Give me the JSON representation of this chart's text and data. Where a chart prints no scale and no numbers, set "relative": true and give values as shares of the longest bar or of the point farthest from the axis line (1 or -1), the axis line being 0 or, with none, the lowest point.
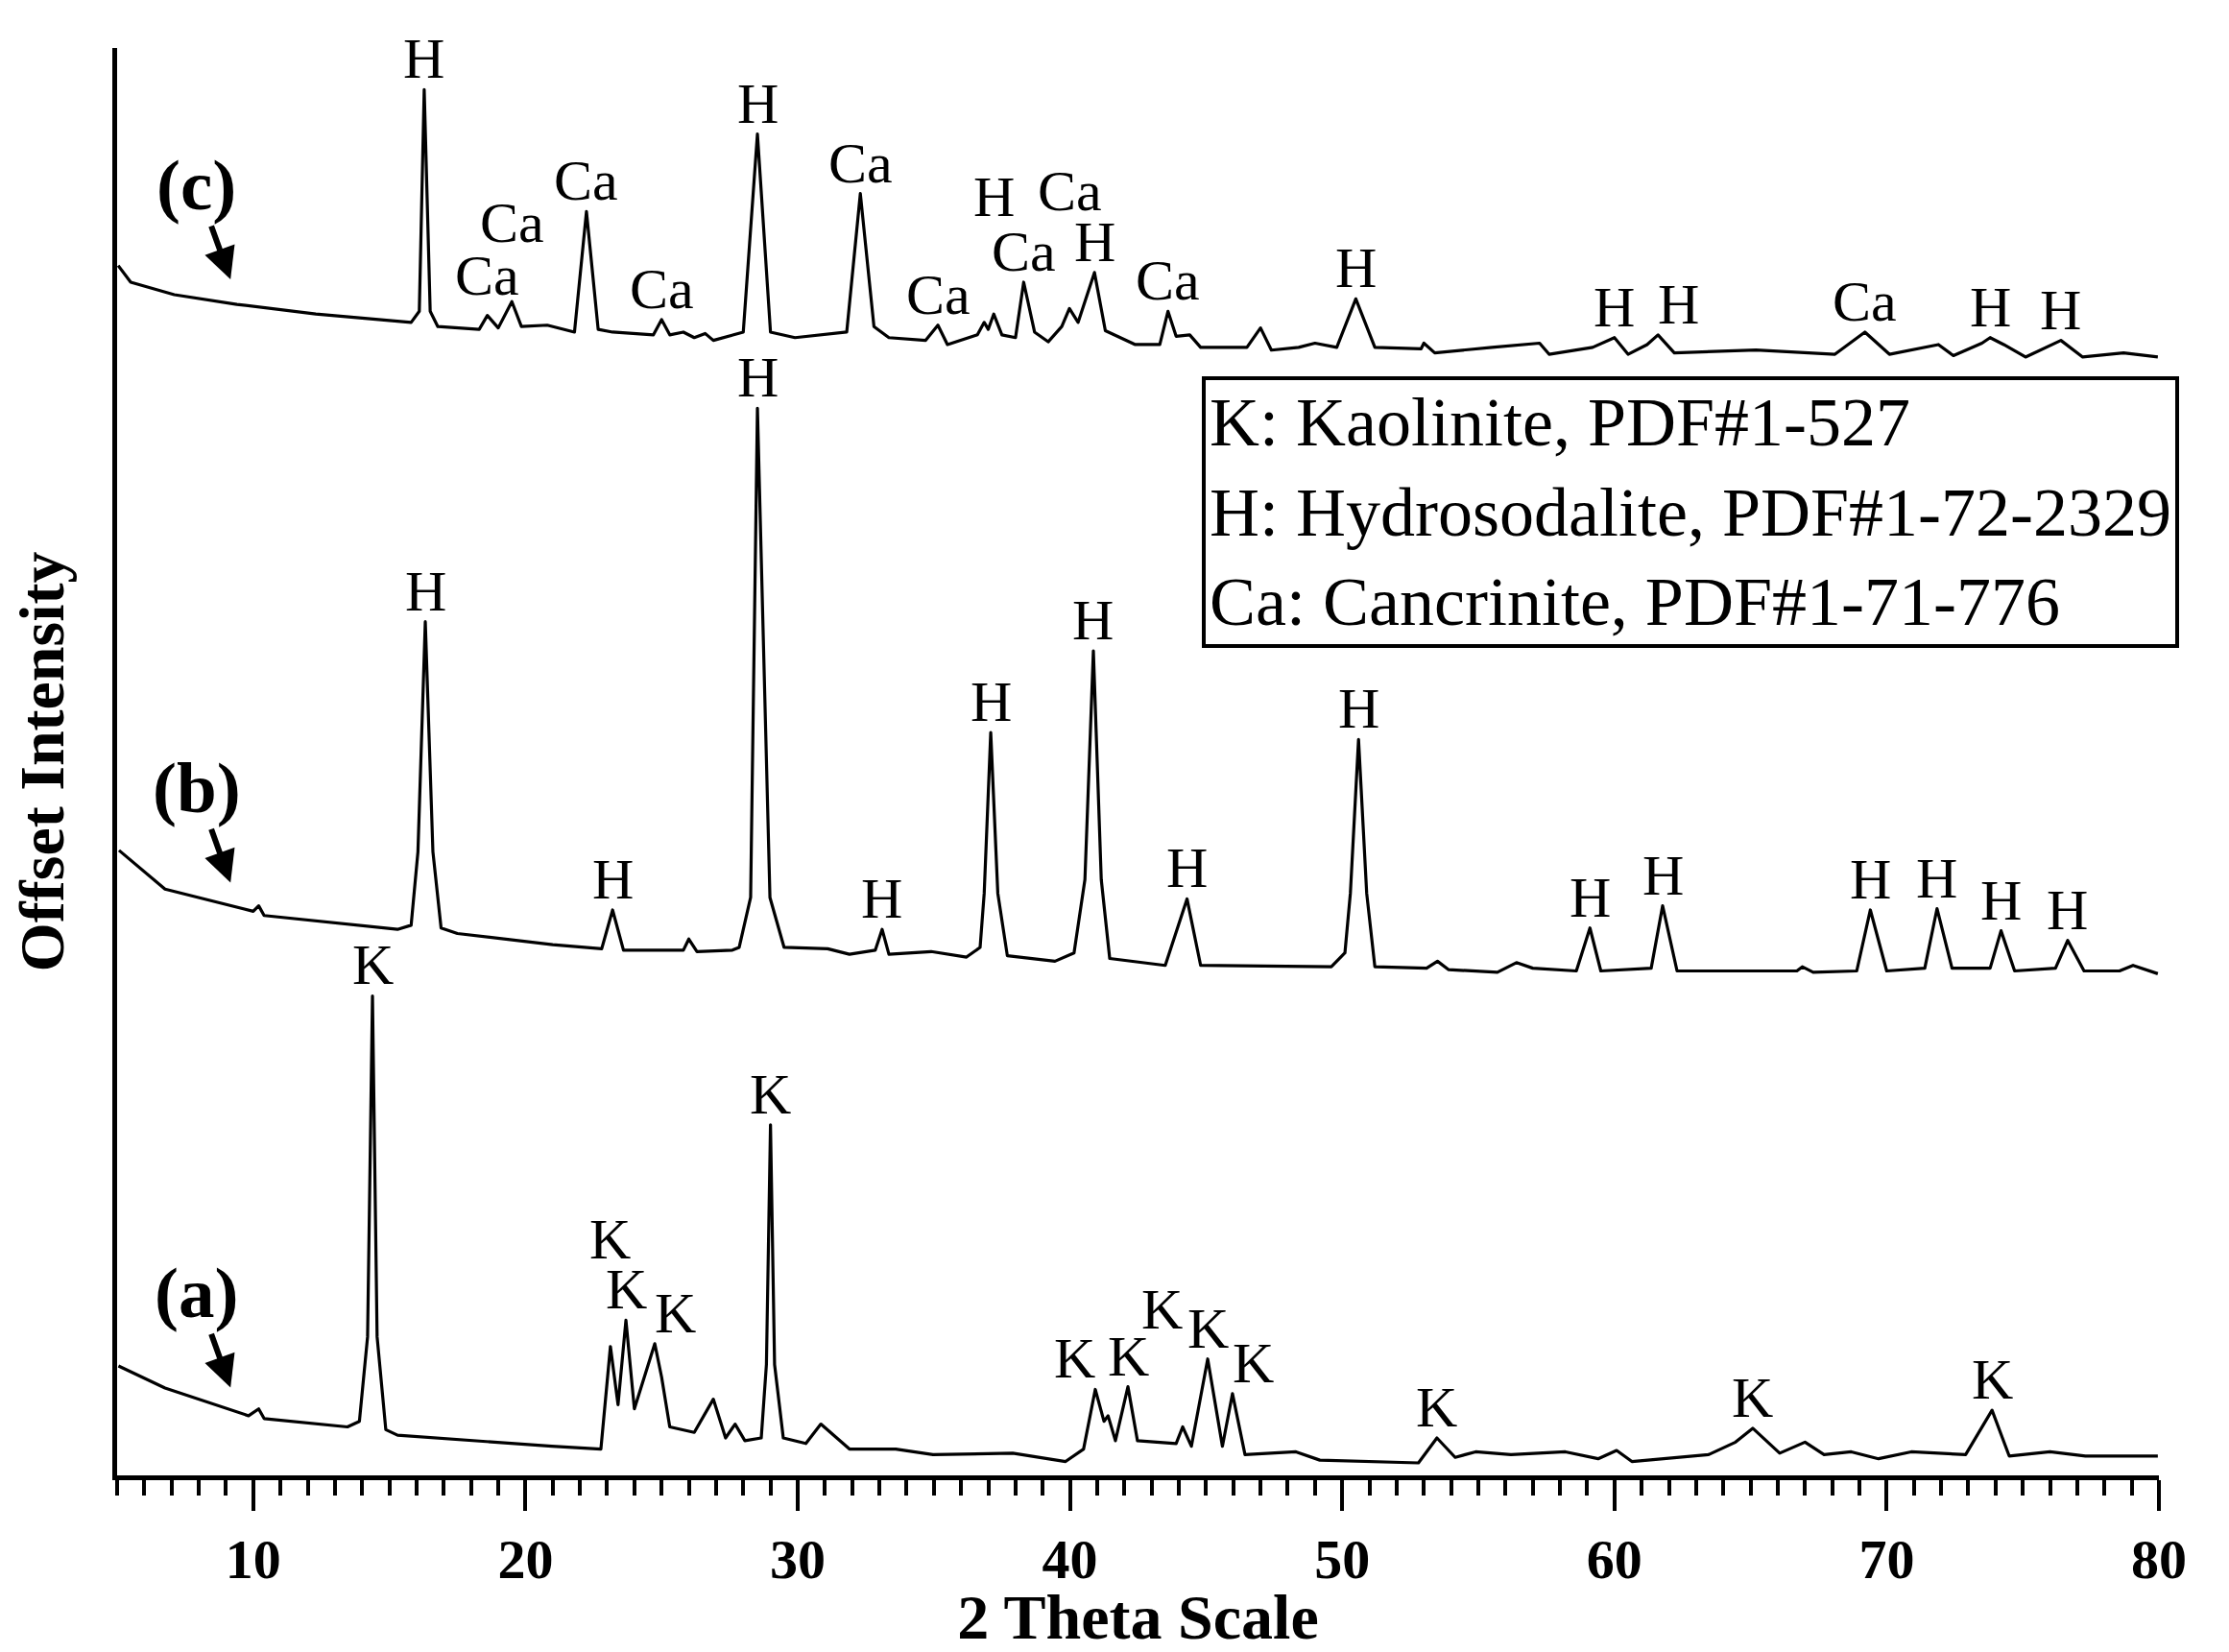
{
  "chart_data": {
    "type": "line",
    "relative": true,
    "xlabel": "2 Theta Scale",
    "ylabel": "Offset Intensity",
    "xlim": [
      5,
      80
    ],
    "xticks": [
      {
        "value": 5,
        "label": null
      },
      {
        "value": 6,
        "label": null
      },
      {
        "value": 7,
        "label": null
      },
      {
        "value": 8,
        "label": null
      },
      {
        "value": 9,
        "label": null
      },
      10,
      {
        "value": 11,
        "label": null
      },
      {
        "value": 12,
        "label": null
      },
      {
        "value": 13,
        "label": null
      },
      {
        "value": 14,
        "label": null
      },
      {
        "value": 15,
        "label": null
      },
      {
        "value": 16,
        "label": null
      },
      {
        "value": 17,
        "label": null
      },
      {
        "value": 18,
        "label": null
      },
      {
        "value": 19,
        "label": null
      },
      20,
      {
        "value": 21,
        "label": null
      },
      {
        "value": 22,
        "label": null
      },
      {
        "value": 23,
        "label": null
      },
      {
        "value": 24,
        "label": null
      },
      {
        "value": 25,
        "label": null
      },
      {
        "value": 26,
        "label": null
      },
      {
        "value": 27,
        "label": null
      },
      {
        "value": 28,
        "label": null
      },
      {
        "value": 29,
        "label": null
      },
      30,
      {
        "value": 31,
        "label": null
      },
      {
        "value": 32,
        "label": null
      },
      {
        "value": 33,
        "label": null
      },
      {
        "value": 34,
        "label": null
      },
      {
        "value": 35,
        "label": null
      },
      {
        "value": 36,
        "label": null
      },
      {
        "value": 37,
        "label": null
      },
      {
        "value": 38,
        "label": null
      },
      {
        "value": 39,
        "label": null
      },
      40,
      {
        "value": 41,
        "label": null
      },
      {
        "value": 42,
        "label": null
      },
      {
        "value": 43,
        "label": null
      },
      {
        "value": 44,
        "label": null
      },
      {
        "value": 45,
        "label": null
      },
      {
        "value": 46,
        "label": null
      },
      {
        "value": 47,
        "label": null
      },
      {
        "value": 48,
        "label": null
      },
      {
        "value": 49,
        "label": null
      },
      50,
      {
        "value": 51,
        "label": null
      },
      {
        "value": 52,
        "label": null
      },
      {
        "value": 53,
        "label": null
      },
      {
        "value": 54,
        "label": null
      },
      {
        "value": 55,
        "label": null
      },
      {
        "value": 56,
        "label": null
      },
      {
        "value": 57,
        "label": null
      },
      {
        "value": 58,
        "label": null
      },
      {
        "value": 59,
        "label": null
      },
      60,
      {
        "value": 61,
        "label": null
      },
      {
        "value": 62,
        "label": null
      },
      {
        "value": 63,
        "label": null
      },
      {
        "value": 64,
        "label": null
      },
      {
        "value": 65,
        "label": null
      },
      {
        "value": 66,
        "label": null
      },
      {
        "value": 67,
        "label": null
      },
      {
        "value": 68,
        "label": null
      },
      {
        "value": 69,
        "label": null
      },
      70,
      {
        "value": 71,
        "label": null
      },
      {
        "value": 72,
        "label": null
      },
      {
        "value": 73,
        "label": null
      },
      {
        "value": 74,
        "label": null
      },
      {
        "value": 75,
        "label": null
      },
      {
        "value": 76,
        "label": null
      },
      {
        "value": 77,
        "label": null
      },
      {
        "value": 78,
        "label": null
      },
      {
        "value": 79,
        "label": null
      },
      80
    ],
    "series": [
      {
        "name": "(a)",
        "color": "#000000",
        "x": [
          5.05,
          6.76,
          9.83,
          10.2,
          10.4,
          13.46,
          13.9,
          14.2,
          14.38,
          14.55,
          14.87,
          15.3,
          20.97,
          22.77,
          23.12,
          23.4,
          23.69,
          24.0,
          24.75,
          25.0,
          25.3,
          26.2,
          26.9,
          27.35,
          27.7,
          28.06,
          28.66,
          28.85,
          29.0,
          29.15,
          29.47,
          30.3,
          30.85,
          31.9,
          33.6,
          34.97,
          37.9,
          39.84,
          40.5,
          40.93,
          41.25,
          41.4,
          41.67,
          42.13,
          42.48,
          43.9,
          44.14,
          44.46,
          45.06,
          45.6,
          45.97,
          46.43,
          48.3,
          49.18,
          52.8,
          53.48,
          54.15,
          54.9,
          56.2,
          58.2,
          59.4,
          60.08,
          60.64,
          63.46,
          64.45,
          65.08,
          66.07,
          67.0,
          67.7,
          68.7,
          69.7,
          70.9,
          72.9,
          73.87,
          74.5,
          76.0,
          77.3,
          79.96
        ],
        "values": [
          0.079,
          0.063,
          0.043,
          0.048,
          0.041,
          0.035,
          0.039,
          0.1,
          0.346,
          0.1,
          0.033,
          0.029,
          0.021,
          0.019,
          0.093,
          0.051,
          0.112,
          0.048,
          0.095,
          0.071,
          0.035,
          0.031,
          0.055,
          0.027,
          0.037,
          0.025,
          0.027,
          0.08,
          0.253,
          0.08,
          0.027,
          0.023,
          0.037,
          0.019,
          0.019,
          0.015,
          0.016,
          0.01,
          0.019,
          0.062,
          0.039,
          0.043,
          0.025,
          0.064,
          0.025,
          0.023,
          0.035,
          0.021,
          0.084,
          0.021,
          0.059,
          0.015,
          0.017,
          0.011,
          0.009,
          0.027,
          0.013,
          0.017,
          0.015,
          0.017,
          0.012,
          0.018,
          0.01,
          0.015,
          0.024,
          0.034,
          0.016,
          0.024,
          0.015,
          0.017,
          0.012,
          0.017,
          0.015,
          0.047,
          0.014,
          0.017,
          0.014,
          0.014
        ]
      },
      {
        "name": "(b)",
        "color": "#000000",
        "x": [
          5.07,
          6.76,
          10.0,
          10.2,
          10.4,
          15.3,
          15.8,
          16.05,
          16.32,
          16.6,
          16.9,
          17.5,
          21.0,
          22.8,
          23.2,
          23.6,
          25.8,
          26.0,
          26.3,
          27.6,
          27.85,
          28.27,
          28.52,
          28.98,
          29.5,
          31.1,
          31.9,
          32.85,
          33.1,
          33.35,
          34.9,
          36.2,
          36.7,
          36.85,
          37.09,
          37.35,
          37.7,
          39.45,
          40.15,
          40.55,
          40.86,
          41.15,
          41.46,
          43.5,
          44.3,
          44.8,
          49.6,
          50.1,
          50.3,
          50.6,
          50.9,
          51.2,
          53.1,
          53.5,
          53.9,
          55.7,
          56.4,
          57.0,
          58.6,
          59.1,
          59.5,
          61.35,
          61.77,
          62.3,
          66.7,
          66.9,
          67.3,
          68.9,
          69.4,
          70.0,
          71.4,
          71.85,
          72.4,
          73.8,
          74.2,
          74.7,
          76.2,
          76.65,
          77.25,
          78.55,
          79.05,
          79.96
        ],
        "values": [
          0.451,
          0.423,
          0.407,
          0.411,
          0.404,
          0.394,
          0.397,
          0.45,
          0.616,
          0.45,
          0.395,
          0.391,
          0.383,
          0.38,
          0.408,
          0.379,
          0.379,
          0.387,
          0.378,
          0.379,
          0.381,
          0.417,
          0.77,
          0.417,
          0.381,
          0.38,
          0.376,
          0.379,
          0.394,
          0.376,
          0.378,
          0.374,
          0.381,
          0.42,
          0.536,
          0.42,
          0.375,
          0.371,
          0.377,
          0.43,
          0.595,
          0.43,
          0.373,
          0.368,
          0.416,
          0.368,
          0.367,
          0.377,
          0.42,
          0.531,
          0.42,
          0.367,
          0.366,
          0.371,
          0.365,
          0.363,
          0.37,
          0.366,
          0.364,
          0.395,
          0.364,
          0.366,
          0.411,
          0.364,
          0.364,
          0.367,
          0.363,
          0.364,
          0.408,
          0.364,
          0.366,
          0.409,
          0.366,
          0.366,
          0.393,
          0.364,
          0.366,
          0.386,
          0.364,
          0.364,
          0.368,
          0.362
        ]
      },
      {
        "name": "(c)",
        "color": "#000000",
        "x": [
          5.04,
          5.5,
          7.1,
          9.4,
          12.3,
          15.8,
          16.1,
          16.28,
          16.5,
          16.78,
          18.3,
          18.6,
          19.0,
          19.5,
          19.85,
          20.8,
          21.8,
          22.24,
          22.67,
          23.2,
          24.7,
          25.0,
          25.3,
          25.8,
          26.2,
          26.6,
          26.9,
          28.0,
          28.52,
          29.0,
          29.9,
          31.8,
          32.3,
          32.8,
          33.35,
          34.7,
          35.15,
          35.5,
          36.6,
          36.85,
          37.0,
          37.2,
          37.5,
          38.0,
          38.3,
          38.7,
          39.2,
          39.7,
          39.98,
          40.3,
          40.9,
          41.3,
          42.4,
          43.3,
          43.6,
          43.9,
          44.4,
          44.8,
          46.5,
          47.0,
          47.4,
          48.4,
          49.0,
          49.8,
          50.5,
          51.2,
          52.9,
          53.0,
          53.4,
          55.5,
          57.25,
          57.6,
          59.2,
          60.0,
          60.5,
          61.2,
          61.6,
          62.2,
          65.2,
          68.1,
          69.2,
          70.1,
          71.9,
          72.45,
          73.5,
          73.8,
          74.3,
          75.1,
          76.4,
          77.2,
          78.7,
          79.96
        ],
        "values": [
          0.873,
          0.861,
          0.852,
          0.845,
          0.838,
          0.832,
          0.84,
          1,
          0.84,
          0.829,
          0.827,
          0.837,
          0.828,
          0.847,
          0.829,
          0.83,
          0.825,
          0.912,
          0.827,
          0.825,
          0.823,
          0.834,
          0.823,
          0.825,
          0.821,
          0.824,
          0.819,
          0.825,
          0.968,
          0.825,
          0.821,
          0.825,
          0.925,
          0.829,
          0.821,
          0.819,
          0.83,
          0.816,
          0.823,
          0.832,
          0.827,
          0.838,
          0.823,
          0.821,
          0.861,
          0.825,
          0.818,
          0.829,
          0.842,
          0.832,
          0.868,
          0.826,
          0.816,
          0.816,
          0.84,
          0.822,
          0.823,
          0.814,
          0.814,
          0.828,
          0.812,
          0.814,
          0.817,
          0.814,
          0.849,
          0.814,
          0.813,
          0.817,
          0.81,
          0.814,
          0.817,
          0.809,
          0.814,
          0.821,
          0.809,
          0.816,
          0.823,
          0.81,
          0.812,
          0.809,
          0.825,
          0.809,
          0.816,
          0.808,
          0.817,
          0.821,
          0.816,
          0.807,
          0.819,
          0.807,
          0.81,
          0.807
        ]
      }
    ],
    "annotations": [
      {
        "text": "H",
        "x": 16.28,
        "y": 1
      },
      {
        "text": "Ca",
        "x": 22.24,
        "y": 0.912
      },
      {
        "text": "H",
        "x": 28.52,
        "y": 0.968
      },
      {
        "text": "Ca",
        "x": 32.3,
        "y": 0.925
      },
      {
        "text": "Ca",
        "x": 18.6,
        "y": 0.837
      },
      {
        "text": "Ca",
        "x": 19.5,
        "y": 0.847
      },
      {
        "text": "Ca",
        "x": 25.0,
        "y": 0.834
      },
      {
        "text": "Ca",
        "x": 35.15,
        "y": 0.83
      },
      {
        "text": "H",
        "x": 40.9,
        "y": 0.868
      },
      {
        "text": "Ca",
        "x": 38.3,
        "y": 0.861
      },
      {
        "text": "H",
        "x": 37.2,
        "y": 0.838
      },
      {
        "text": "Ca",
        "x": 39.98,
        "y": 0.842
      },
      {
        "text": "Ca",
        "x": 43.6,
        "y": 0.84
      },
      {
        "text": "H",
        "x": 50.5,
        "y": 0.849
      },
      {
        "text": "H",
        "x": 60.0,
        "y": 0.821
      },
      {
        "text": "H",
        "x": 61.6,
        "y": 0.823
      },
      {
        "text": "Ca",
        "x": 69.2,
        "y": 0.825
      },
      {
        "text": "H",
        "x": 73.8,
        "y": 0.821
      },
      {
        "text": "H",
        "x": 76.4,
        "y": 0.819
      },
      {
        "text": "H",
        "x": 28.52,
        "y": 0.77
      },
      {
        "text": "H",
        "x": 16.32,
        "y": 0.616
      },
      {
        "text": "H",
        "x": 40.86,
        "y": 0.595
      },
      {
        "text": "H",
        "x": 37.09,
        "y": 0.536
      },
      {
        "text": "H",
        "x": 50.6,
        "y": 0.531
      },
      {
        "text": "H",
        "x": 23.2,
        "y": 0.408
      },
      {
        "text": "H",
        "x": 33.1,
        "y": 0.394
      },
      {
        "text": "H",
        "x": 44.3,
        "y": 0.416
      },
      {
        "text": "H",
        "x": 59.1,
        "y": 0.395
      },
      {
        "text": "H",
        "x": 61.77,
        "y": 0.411
      },
      {
        "text": "H",
        "x": 69.4,
        "y": 0.408
      },
      {
        "text": "H",
        "x": 71.85,
        "y": 0.409
      },
      {
        "text": "H",
        "x": 74.2,
        "y": 0.393
      },
      {
        "text": "H",
        "x": 76.65,
        "y": 0.386
      },
      {
        "text": "K",
        "x": 14.38,
        "y": 0.346
      },
      {
        "text": "K",
        "x": 29.0,
        "y": 0.253
      },
      {
        "text": "K",
        "x": 23.69,
        "y": 0.112
      },
      {
        "text": "K",
        "x": 23.12,
        "y": 0.093
      },
      {
        "text": "K",
        "x": 24.75,
        "y": 0.095
      },
      {
        "text": "K",
        "x": 45.06,
        "y": 0.084
      },
      {
        "text": "K",
        "x": 42.13,
        "y": 0.064
      },
      {
        "text": "K",
        "x": 40.93,
        "y": 0.062
      },
      {
        "text": "K",
        "x": 45.97,
        "y": 0.059
      },
      {
        "text": "K",
        "x": 44.14,
        "y": 0.035
      },
      {
        "text": "K",
        "x": 53.48,
        "y": 0.027
      },
      {
        "text": "K",
        "x": 65.08,
        "y": 0.034
      },
      {
        "text": "K",
        "x": 73.87,
        "y": 0.047
      },
      "K: Kaolinite, PDF#1-527",
      "H: Hydrosodalite, PDF#1-72-2329",
      "Ca: Cancrinite, PDF#1-71-776"
    ]
  }
}
